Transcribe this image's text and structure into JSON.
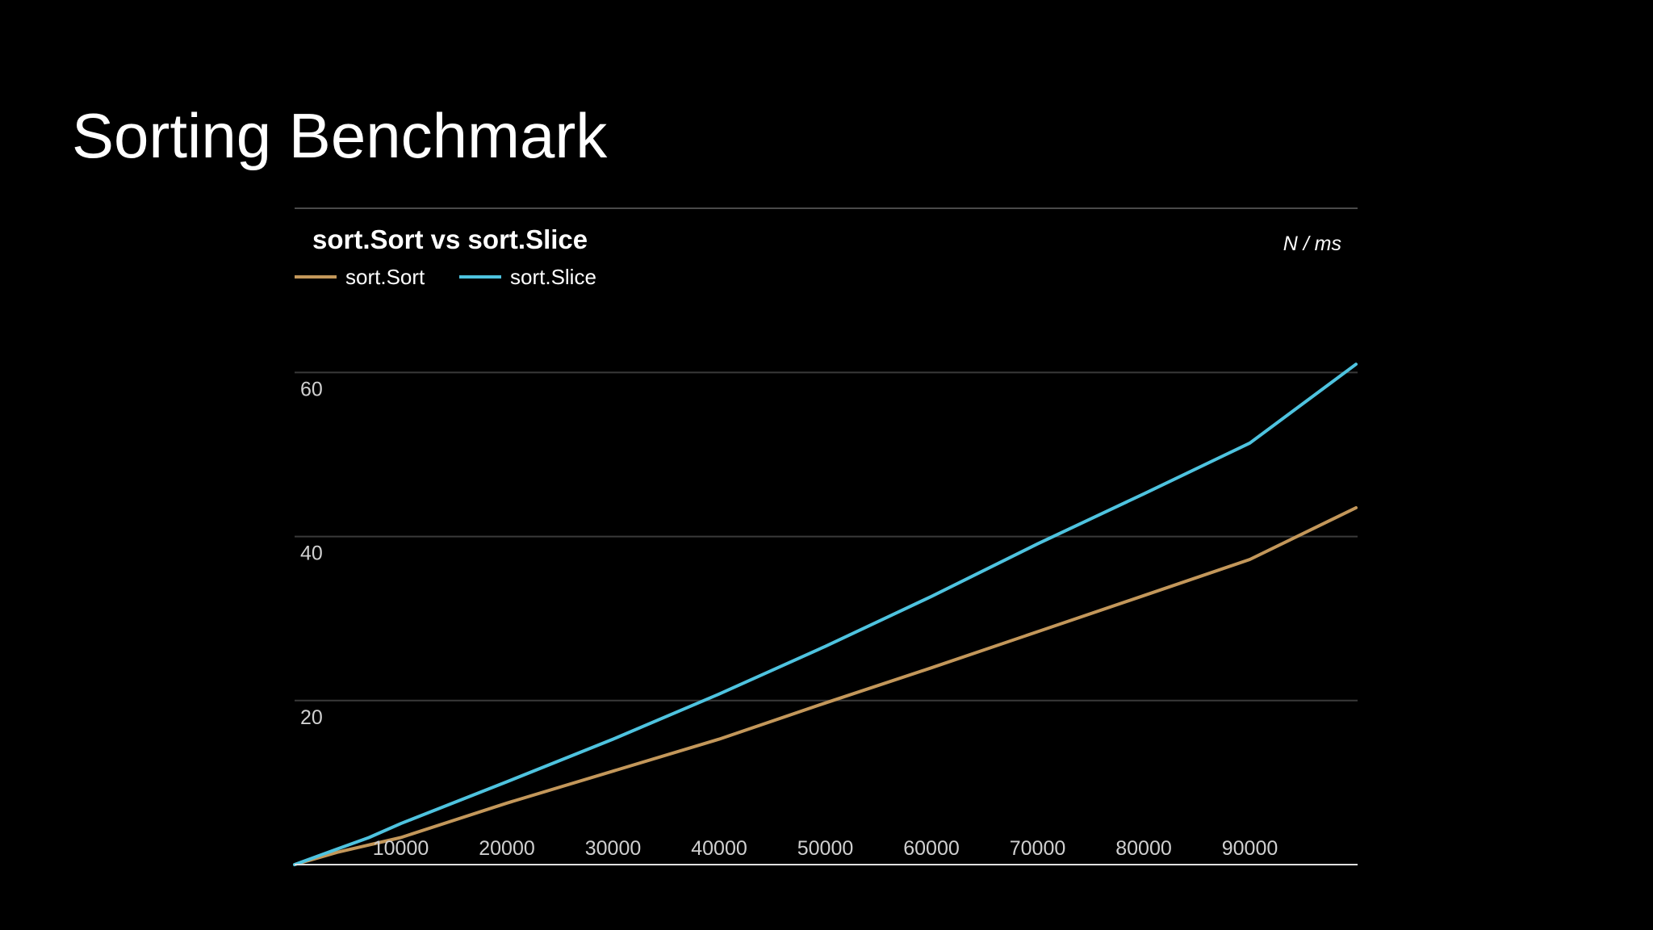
{
  "slide": {
    "title": "Sorting Benchmark"
  },
  "colors": {
    "background": "#000000",
    "text": "#ffffff",
    "tick_text": "#d0d0d0",
    "grid": "#3a3a3a",
    "axis": "#e0e0e0",
    "sort_sort": "#c3975a",
    "sort_slice": "#4ec3df"
  },
  "chart_data": {
    "type": "line",
    "title": "sort.Sort vs sort.Slice",
    "unit_label": "N / ms",
    "xlabel": "",
    "ylabel": "",
    "xlim": [
      0,
      100000
    ],
    "ylim": [
      0,
      60
    ],
    "x_ticks": [
      10000,
      20000,
      30000,
      40000,
      50000,
      60000,
      70000,
      80000,
      90000
    ],
    "y_ticks": [
      20,
      40,
      60
    ],
    "grid": true,
    "legend": {
      "position": "top-left",
      "entries": [
        "sort.Sort",
        "sort.Slice"
      ]
    },
    "series": [
      {
        "name": "sort.Sort",
        "color": "#c3975a",
        "x": [
          0,
          4000,
          10000,
          20000,
          30000,
          40000,
          50000,
          60000,
          70000,
          80000,
          90000,
          100000
        ],
        "y": [
          0,
          1.5,
          3.3,
          7.5,
          11.4,
          15.3,
          19.7,
          24.0,
          28.4,
          32.8,
          37.2,
          43.5
        ]
      },
      {
        "name": "sort.Slice",
        "color": "#4ec3df",
        "x": [
          0,
          4000,
          7000,
          10000,
          20000,
          30000,
          40000,
          50000,
          60000,
          70000,
          80000,
          90000,
          100000
        ],
        "y": [
          0,
          1.9,
          3.3,
          5.0,
          10.1,
          15.3,
          20.8,
          26.6,
          32.7,
          39.1,
          45.2,
          51.4,
          61.0
        ]
      }
    ]
  }
}
